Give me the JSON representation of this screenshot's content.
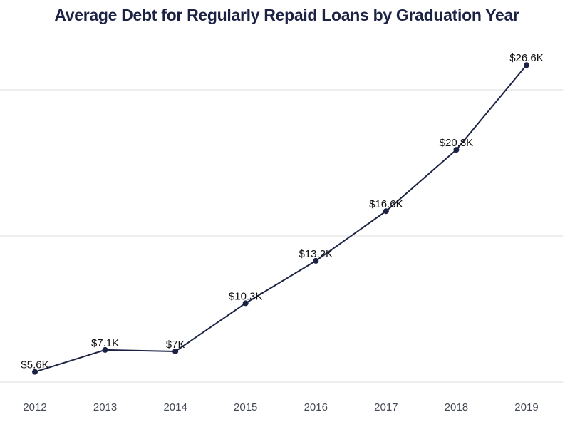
{
  "chart_data": {
    "type": "line",
    "title": "Average Debt for Regularly Repaid Loans by Graduation Year",
    "xlabel": "",
    "ylabel": "",
    "categories": [
      "2012",
      "2013",
      "2014",
      "2015",
      "2016",
      "2017",
      "2018",
      "2019"
    ],
    "series": [
      {
        "name": "Average Debt",
        "values": [
          5.6,
          7.1,
          7.0,
          10.3,
          13.2,
          16.6,
          20.8,
          26.6
        ],
        "labels": [
          "$5.6K",
          "$7.1K",
          "$7K",
          "$10.3K",
          "$13.2K",
          "$16.6K",
          "$20.8K",
          "$26.6K"
        ],
        "color": "#1c2244"
      }
    ],
    "ylim": [
      4.9,
      29.9
    ],
    "grid": true,
    "legend": "none"
  }
}
